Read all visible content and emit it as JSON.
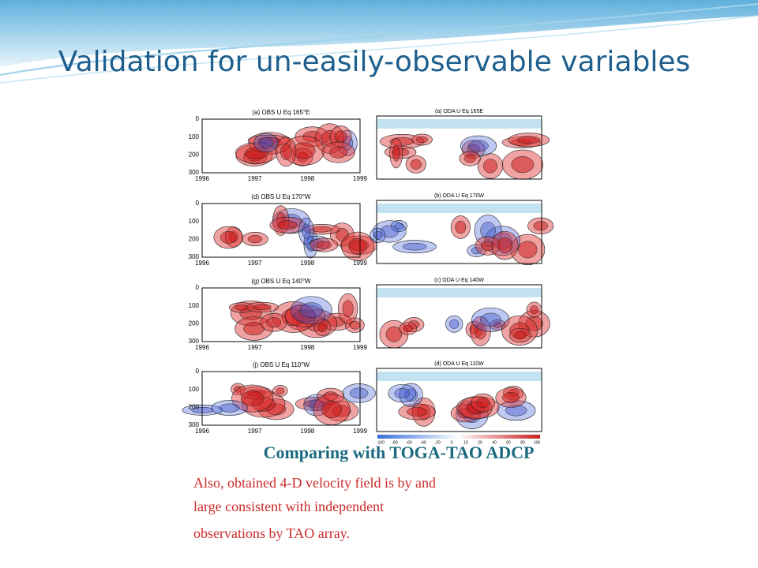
{
  "title": "Validation for un-easily-observable variables",
  "panels": [
    {
      "left_title": "(a) OBS U Eq 165°E",
      "right_title": "(a) ODA U Eq 165E"
    },
    {
      "left_title": "(d) OBS U Eq 170°W",
      "right_title": "(b) ODA U Eq 170W"
    },
    {
      "left_title": "(g) OBS U Eq 140°W",
      "right_title": "(c) ODA U Eq 140W"
    },
    {
      "left_title": "(j) OBS U Eq 110°W",
      "right_title": "(d) ODA U Eq 110W"
    }
  ],
  "left_axis": {
    "yticks": [
      0,
      100,
      200,
      300
    ],
    "xticks": [
      1996,
      1997,
      1998,
      1999
    ]
  },
  "colorbar": [
    -100,
    -80,
    -60,
    -40,
    -20,
    0,
    10,
    20,
    40,
    60,
    80,
    100
  ],
  "caption": "Comparing with TOGA-TAO ADCP",
  "paragraph": [
    "Also, obtained 4-D velocity field is by and",
    "large consistent with independent",
    "observations by TAO array."
  ]
}
